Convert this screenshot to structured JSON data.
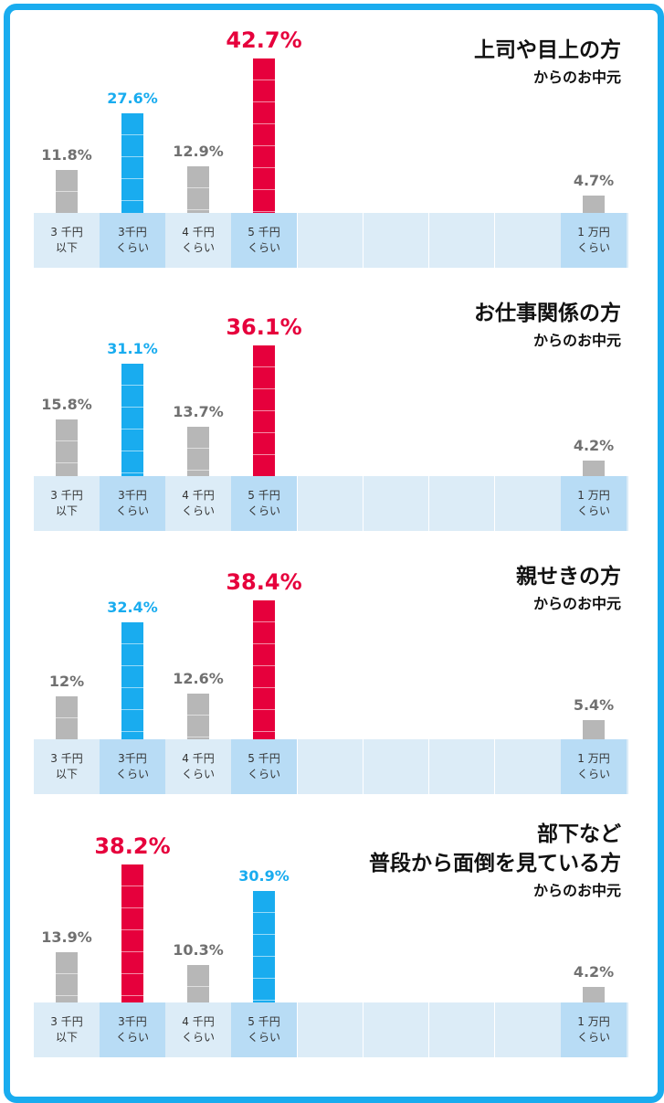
{
  "categories": [
    {
      "line1": "3 千円",
      "line2": "以下"
    },
    {
      "line1": "3千円",
      "line2": "くらい"
    },
    {
      "line1": "4 千円",
      "line2": "くらい"
    },
    {
      "line1": "5 千円",
      "line2": "くらい"
    },
    {
      "line1": "1 万円",
      "line2": "くらい"
    }
  ],
  "colors": {
    "frame": "#19acef",
    "gray": "#b7b7b7",
    "blue": "#19acef",
    "red": "#e6003c",
    "band": "#dcecf7",
    "band_highlight": "#b8dcf5"
  },
  "panels": [
    {
      "title_lines": [
        "上司や目上の方"
      ],
      "subtitle": "からのお中元"
    },
    {
      "title_lines": [
        "お仕事関係の方"
      ],
      "subtitle": "からのお中元"
    },
    {
      "title_lines": [
        "親せきの方"
      ],
      "subtitle": "からのお中元"
    },
    {
      "title_lines": [
        "部下など",
        "普段から面倒を見ている方"
      ],
      "subtitle": "からのお中元"
    }
  ],
  "chart_data": [
    {
      "type": "bar",
      "title": "上司や目上の方 からのお中元",
      "categories": [
        "3 千円 以下",
        "3千円 くらい",
        "4 千円 くらい",
        "5 千円 くらい",
        "1 万円 くらい"
      ],
      "values": [
        11.8,
        27.6,
        12.9,
        42.7,
        4.7
      ],
      "value_labels": [
        "11.8%",
        "27.6%",
        "12.9%",
        "42.7%",
        "4.7%"
      ],
      "bar_colors": [
        "gray",
        "blue",
        "gray",
        "red",
        "gray"
      ]
    },
    {
      "type": "bar",
      "title": "お仕事関係の方 からのお中元",
      "categories": [
        "3 千円 以下",
        "3千円 くらい",
        "4 千円 くらい",
        "5 千円 くらい",
        "1 万円 くらい"
      ],
      "values": [
        15.8,
        31.1,
        13.7,
        36.1,
        4.2
      ],
      "value_labels": [
        "15.8%",
        "31.1%",
        "13.7%",
        "36.1%",
        "4.2%"
      ],
      "bar_colors": [
        "gray",
        "blue",
        "gray",
        "red",
        "gray"
      ]
    },
    {
      "type": "bar",
      "title": "親せきの方 からのお中元",
      "categories": [
        "3 千円 以下",
        "3千円 くらい",
        "4 千円 くらい",
        "5 千円 くらい",
        "1 万円 くらい"
      ],
      "values": [
        12,
        32.4,
        12.6,
        38.4,
        5.4
      ],
      "value_labels": [
        "12%",
        "32.4%",
        "12.6%",
        "38.4%",
        "5.4%"
      ],
      "bar_colors": [
        "gray",
        "blue",
        "gray",
        "red",
        "gray"
      ]
    },
    {
      "type": "bar",
      "title": "部下など 普段から面倒を見ている方 からのお中元",
      "categories": [
        "3 千円 以下",
        "3千円 くらい",
        "4 千円 くらい",
        "5 千円 くらい",
        "1 万円 くらい"
      ],
      "values": [
        13.9,
        38.2,
        10.3,
        30.9,
        4.2
      ],
      "value_labels": [
        "13.9%",
        "38.2%",
        "10.3%",
        "30.9%",
        "4.2%"
      ],
      "bar_colors": [
        "gray",
        "red",
        "gray",
        "blue",
        "gray"
      ]
    }
  ]
}
